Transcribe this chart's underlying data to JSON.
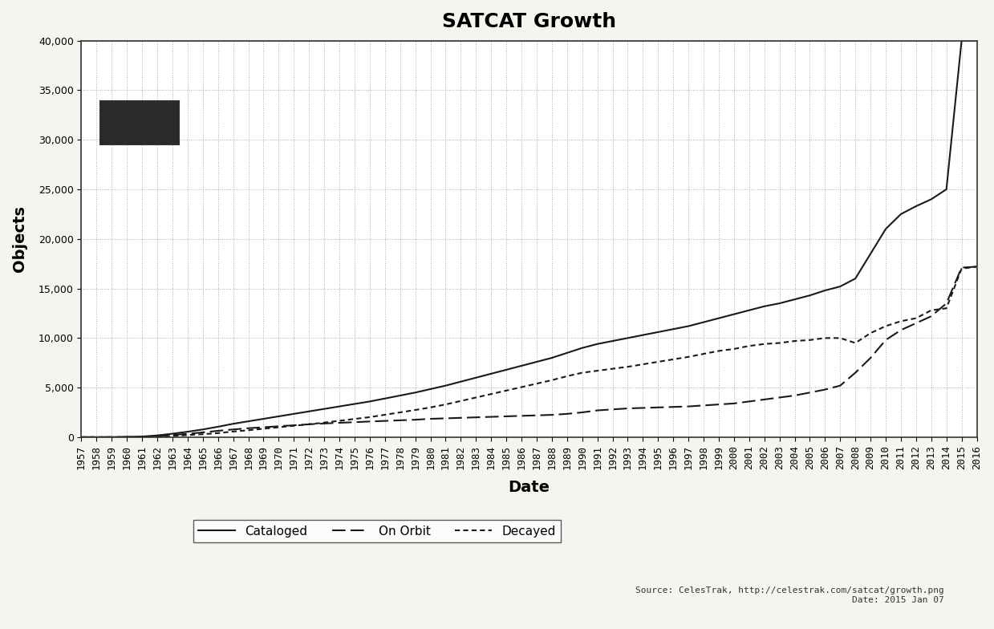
{
  "title": "SATCAT Growth",
  "xlabel": "Date",
  "ylabel": "Objects",
  "source_text": "Source: CelesTrak, http://celestrak.com/satcat/growth.png\nDate: 2015 Jan 07",
  "background_color": "#f5f5f0",
  "plot_bg_color": "#ffffff",
  "xlim": [
    1957,
    2016
  ],
  "ylim": [
    0,
    40000
  ],
  "yticks": [
    0,
    5000,
    10000,
    15000,
    20000,
    25000,
    30000,
    35000,
    40000
  ],
  "years": [
    1957,
    1958,
    1959,
    1960,
    1961,
    1962,
    1963,
    1964,
    1965,
    1966,
    1967,
    1968,
    1969,
    1970,
    1971,
    1972,
    1973,
    1974,
    1975,
    1976,
    1977,
    1978,
    1979,
    1980,
    1981,
    1982,
    1983,
    1984,
    1985,
    1986,
    1987,
    1988,
    1989,
    1990,
    1991,
    1992,
    1993,
    1994,
    1995,
    1996,
    1997,
    1998,
    1999,
    2000,
    2001,
    2002,
    2003,
    2004,
    2005,
    2006,
    2007,
    2008,
    2009,
    2010,
    2011,
    2012,
    2013,
    2014,
    2015,
    2016
  ],
  "cataloged": [
    0,
    2,
    5,
    25,
    60,
    175,
    350,
    550,
    780,
    1050,
    1350,
    1600,
    1850,
    2100,
    2350,
    2600,
    2850,
    3100,
    3350,
    3600,
    3900,
    4200,
    4500,
    4850,
    5200,
    5600,
    6000,
    6400,
    6800,
    7200,
    7600,
    8000,
    8500,
    9000,
    9400,
    9700,
    10000,
    10300,
    10600,
    10900,
    11200,
    11600,
    12000,
    12400,
    12800,
    13200,
    13500,
    13900,
    14300,
    14800,
    15200,
    16000,
    18500,
    21000,
    22500,
    23300,
    24000,
    25000,
    40000,
    40000
  ],
  "on_orbit": [
    0,
    2,
    4,
    18,
    40,
    100,
    220,
    340,
    480,
    640,
    780,
    900,
    1000,
    1100,
    1200,
    1300,
    1380,
    1450,
    1510,
    1580,
    1640,
    1700,
    1760,
    1850,
    1900,
    1950,
    2000,
    2050,
    2100,
    2150,
    2200,
    2250,
    2350,
    2500,
    2700,
    2800,
    2900,
    2950,
    3000,
    3050,
    3100,
    3200,
    3300,
    3400,
    3600,
    3800,
    4000,
    4200,
    4500,
    4800,
    5200,
    6500,
    8000,
    9800,
    10800,
    11500,
    12200,
    13500,
    17100,
    17200
  ],
  "decayed": [
    0,
    0,
    1,
    7,
    20,
    75,
    130,
    210,
    300,
    410,
    570,
    700,
    850,
    1000,
    1150,
    1300,
    1470,
    1650,
    1840,
    2020,
    2260,
    2500,
    2740,
    3000,
    3300,
    3650,
    4000,
    4350,
    4700,
    5050,
    5400,
    5750,
    6150,
    6500,
    6700,
    6900,
    7100,
    7350,
    7600,
    7850,
    8100,
    8400,
    8700,
    8900,
    9200,
    9400,
    9500,
    9700,
    9800,
    10000,
    10000,
    9500,
    10500,
    11200,
    11700,
    12000,
    12800,
    13000,
    17000,
    17200
  ],
  "line_color": "#1a1a1a",
  "line_width": 1.5,
  "title_fontsize": 18,
  "label_fontsize": 14,
  "tick_fontsize": 9,
  "legend_fontsize": 11
}
